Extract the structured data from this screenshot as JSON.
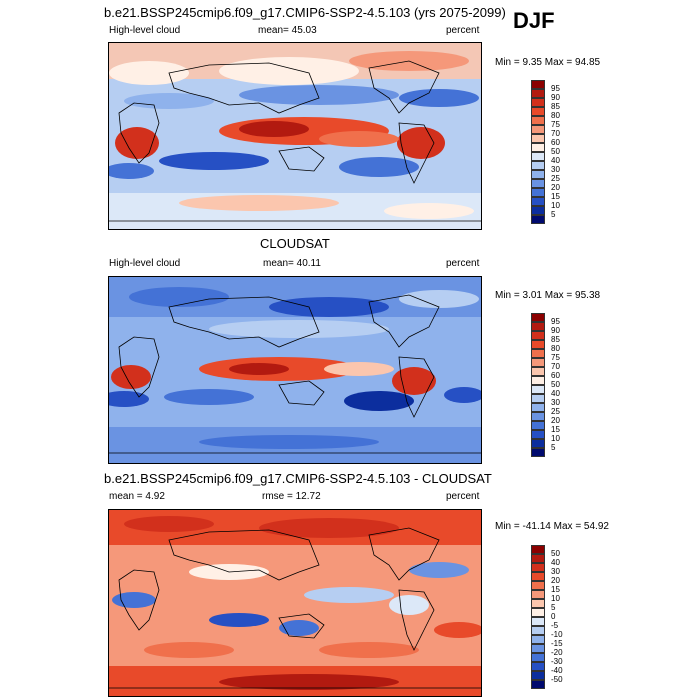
{
  "season": "DJF",
  "panels": [
    {
      "title": "b.e21.BSSP245cmip6.f09_g17.CMIP6-SSP2-4.5.103 (yrs 2075-2099)",
      "left_label": "High-level cloud",
      "center_label": "mean=  45.03",
      "right_label": "percent",
      "minmax": "Min =   9.35 Max =  94.85",
      "colorbar": {
        "labels": [
          "95",
          "90",
          "85",
          "80",
          "75",
          "70",
          "60",
          "50",
          "40",
          "30",
          "25",
          "20",
          "15",
          "10",
          "5"
        ],
        "colors": [
          "#8b0000",
          "#b21a10",
          "#d2301c",
          "#e84a2a",
          "#f0704c",
          "#f5987a",
          "#fbc6ae",
          "#fff0e6",
          "#dce8f8",
          "#b6cef2",
          "#8fb2ec",
          "#6a93e2",
          "#4472d6",
          "#2650c4",
          "#0c2e9e",
          "#000a6e"
        ]
      }
    },
    {
      "title": "CLOUDSAT",
      "left_label": "High-level cloud",
      "center_label": "mean=  40.11",
      "right_label": "percent",
      "minmax": "Min =   3.01 Max =  95.38",
      "colorbar": {
        "labels": [
          "95",
          "90",
          "85",
          "80",
          "75",
          "70",
          "60",
          "50",
          "40",
          "30",
          "25",
          "20",
          "15",
          "10",
          "5"
        ],
        "colors": [
          "#8b0000",
          "#b21a10",
          "#d2301c",
          "#e84a2a",
          "#f0704c",
          "#f5987a",
          "#fbc6ae",
          "#fff0e6",
          "#dce8f8",
          "#b6cef2",
          "#8fb2ec",
          "#6a93e2",
          "#4472d6",
          "#2650c4",
          "#0c2e9e",
          "#000a6e"
        ]
      }
    },
    {
      "title": "b.e21.BSSP245cmip6.f09_g17.CMIP6-SSP2-4.5.103 - CLOUDSAT",
      "left_label": "mean =   4.92",
      "center_label": "rmse =  12.72",
      "right_label": "percent",
      "minmax": "Min = -41.14 Max =  54.92",
      "colorbar": {
        "labels": [
          "50",
          "40",
          "30",
          "20",
          "15",
          "10",
          "5",
          "0",
          "-5",
          "-10",
          "-15",
          "-20",
          "-30",
          "-40",
          "-50"
        ],
        "colors": [
          "#8b0000",
          "#b21a10",
          "#d2301c",
          "#e84a2a",
          "#f0704c",
          "#f5987a",
          "#fbc6ae",
          "#fff0e6",
          "#dce8f8",
          "#b6cef2",
          "#8fb2ec",
          "#6a93e2",
          "#4472d6",
          "#2650c4",
          "#0c2e9e",
          "#000a6e"
        ]
      }
    }
  ]
}
